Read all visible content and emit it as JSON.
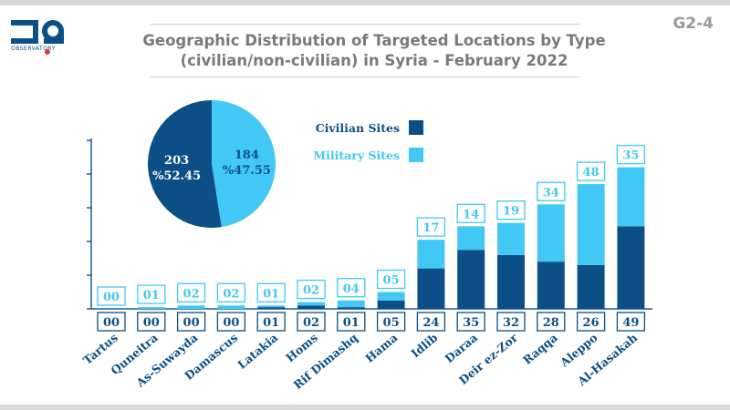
{
  "header": {
    "code": "G2-4",
    "title_line1": "Geographic Distribution of Targeted Locations by Type",
    "title_line2": "(civilian/non-civilian) in Syria - February 2022",
    "logo_text": "OBSERVATORY"
  },
  "colors": {
    "civilian": "#0b4f86",
    "military": "#42c8f5",
    "axis": "#1a5b94",
    "label": "#0b4f86"
  },
  "chart_data": [
    {
      "type": "bar",
      "stacked": true,
      "categories": [
        "Tartus",
        "Quneitra",
        "As-Suwayda",
        "Damascus",
        "Latakia",
        "Homs",
        "Rif Dimashq",
        "Hama",
        "Idlib",
        "Daraa",
        "Deir ez-Zor",
        "Raqqa",
        "Aleppo",
        "Al-Hasakah"
      ],
      "series": [
        {
          "name": "Civilian Sites",
          "values": [
            0,
            0,
            0,
            0,
            1,
            2,
            1,
            5,
            24,
            35,
            32,
            28,
            26,
            49
          ],
          "labels": [
            "00",
            "00",
            "00",
            "00",
            "01",
            "02",
            "01",
            "05",
            "24",
            "35",
            "32",
            "28",
            "26",
            "49"
          ]
        },
        {
          "name": "Military Sites",
          "values": [
            0,
            1,
            2,
            2,
            1,
            2,
            4,
            5,
            17,
            14,
            19,
            34,
            48,
            35
          ],
          "labels": [
            "00",
            "01",
            "02",
            "02",
            "01",
            "02",
            "04",
            "05",
            "17",
            "14",
            "19",
            "34",
            "48",
            "35"
          ]
        }
      ],
      "ylim": [
        0,
        100
      ],
      "legend": "top-center"
    },
    {
      "type": "pie",
      "slices": [
        {
          "name": "Civilian Sites",
          "value": 203,
          "percent_label": "%52.45"
        },
        {
          "name": "Military Sites",
          "value": 184,
          "percent_label": "%47.55"
        }
      ],
      "labels": [
        "203",
        "184"
      ]
    }
  ]
}
